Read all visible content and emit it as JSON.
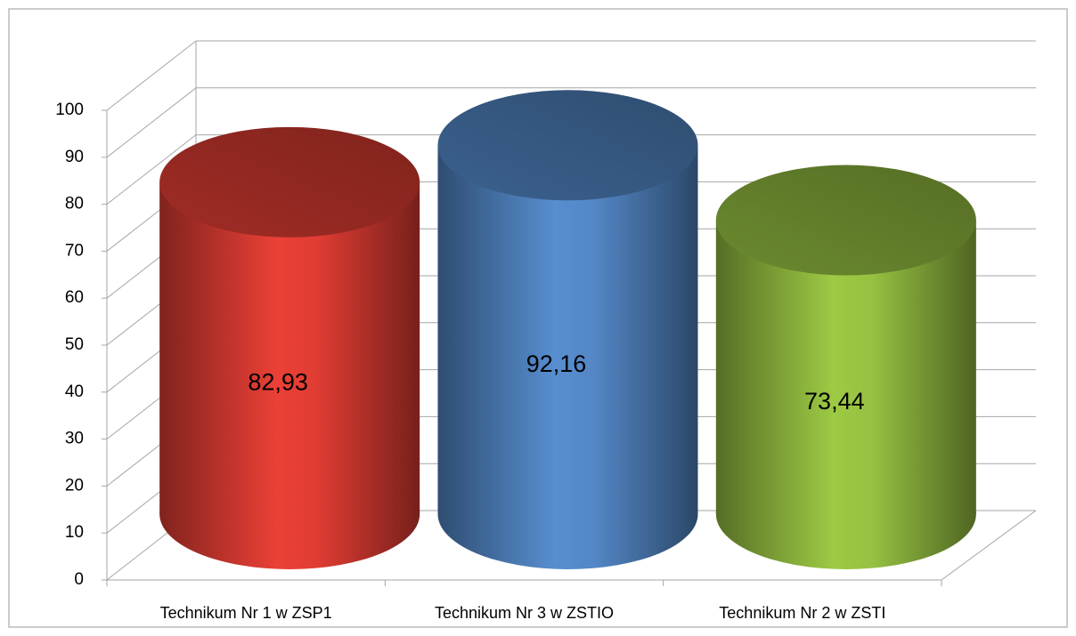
{
  "chart_data": {
    "type": "cylinder",
    "categories": [
      "Technikum Nr 1 w ZSP1",
      "Technikum Nr 3 w ZSTIO",
      "Technikum Nr 2 w ZSTI"
    ],
    "values": [
      82.93,
      92.16,
      73.44
    ],
    "value_labels": [
      "82,93",
      "92,16",
      "73,44"
    ],
    "colors": [
      "#d63a31",
      "#4f81bd",
      "#8fb83e"
    ],
    "ylim": [
      0,
      100
    ],
    "yticks": [
      0,
      10,
      20,
      30,
      40,
      50,
      60,
      70,
      80,
      90,
      100
    ],
    "grid": true
  }
}
